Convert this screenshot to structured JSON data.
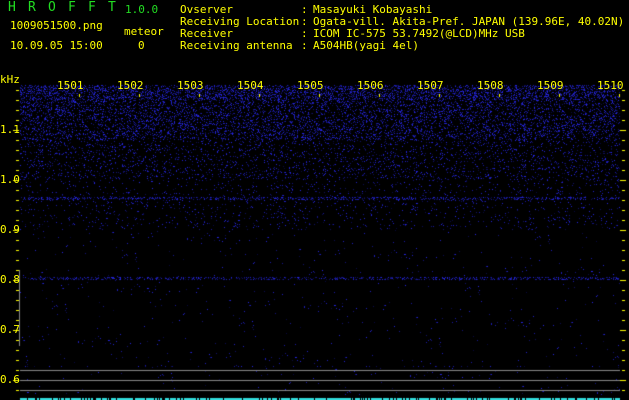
{
  "app": {
    "title_letters": [
      "H",
      "R",
      "O",
      "F",
      "F",
      "T"
    ],
    "version": "1.0.0"
  },
  "file": {
    "name": "1009051500.png",
    "datetime": "10.09.05 15:00"
  },
  "meteor": {
    "label": "meteor",
    "count": "0"
  },
  "info": [
    {
      "label": "Ovserver",
      "value": "Masayuki Kobayashi"
    },
    {
      "label": "Receiving Location",
      "value": "Ogata-vill. Akita-Pref. JAPAN (139.96E, 40.02N)"
    },
    {
      "label": "Receiver",
      "value": "ICOM IC-575 53.7492(@LCD)MHz USB"
    },
    {
      "label": "Receiving antenna",
      "value": "A504HB(yagi 4el)"
    }
  ],
  "separator": ":",
  "axis": {
    "y_unit": "kHz",
    "x_ticks": [
      "1501",
      "1502",
      "1503",
      "1504",
      "1505",
      "1506",
      "1507",
      "1508",
      "1509",
      "1510"
    ],
    "y_ticks": [
      "1.1",
      "1.0",
      "0.9",
      "0.8",
      "0.7",
      "0.6"
    ]
  },
  "colors": {
    "text": "#ffff00",
    "title": "#22dd22",
    "noise": "#2020ff",
    "reference_line": "#888888",
    "bottom_strip": "#33dddd"
  }
}
